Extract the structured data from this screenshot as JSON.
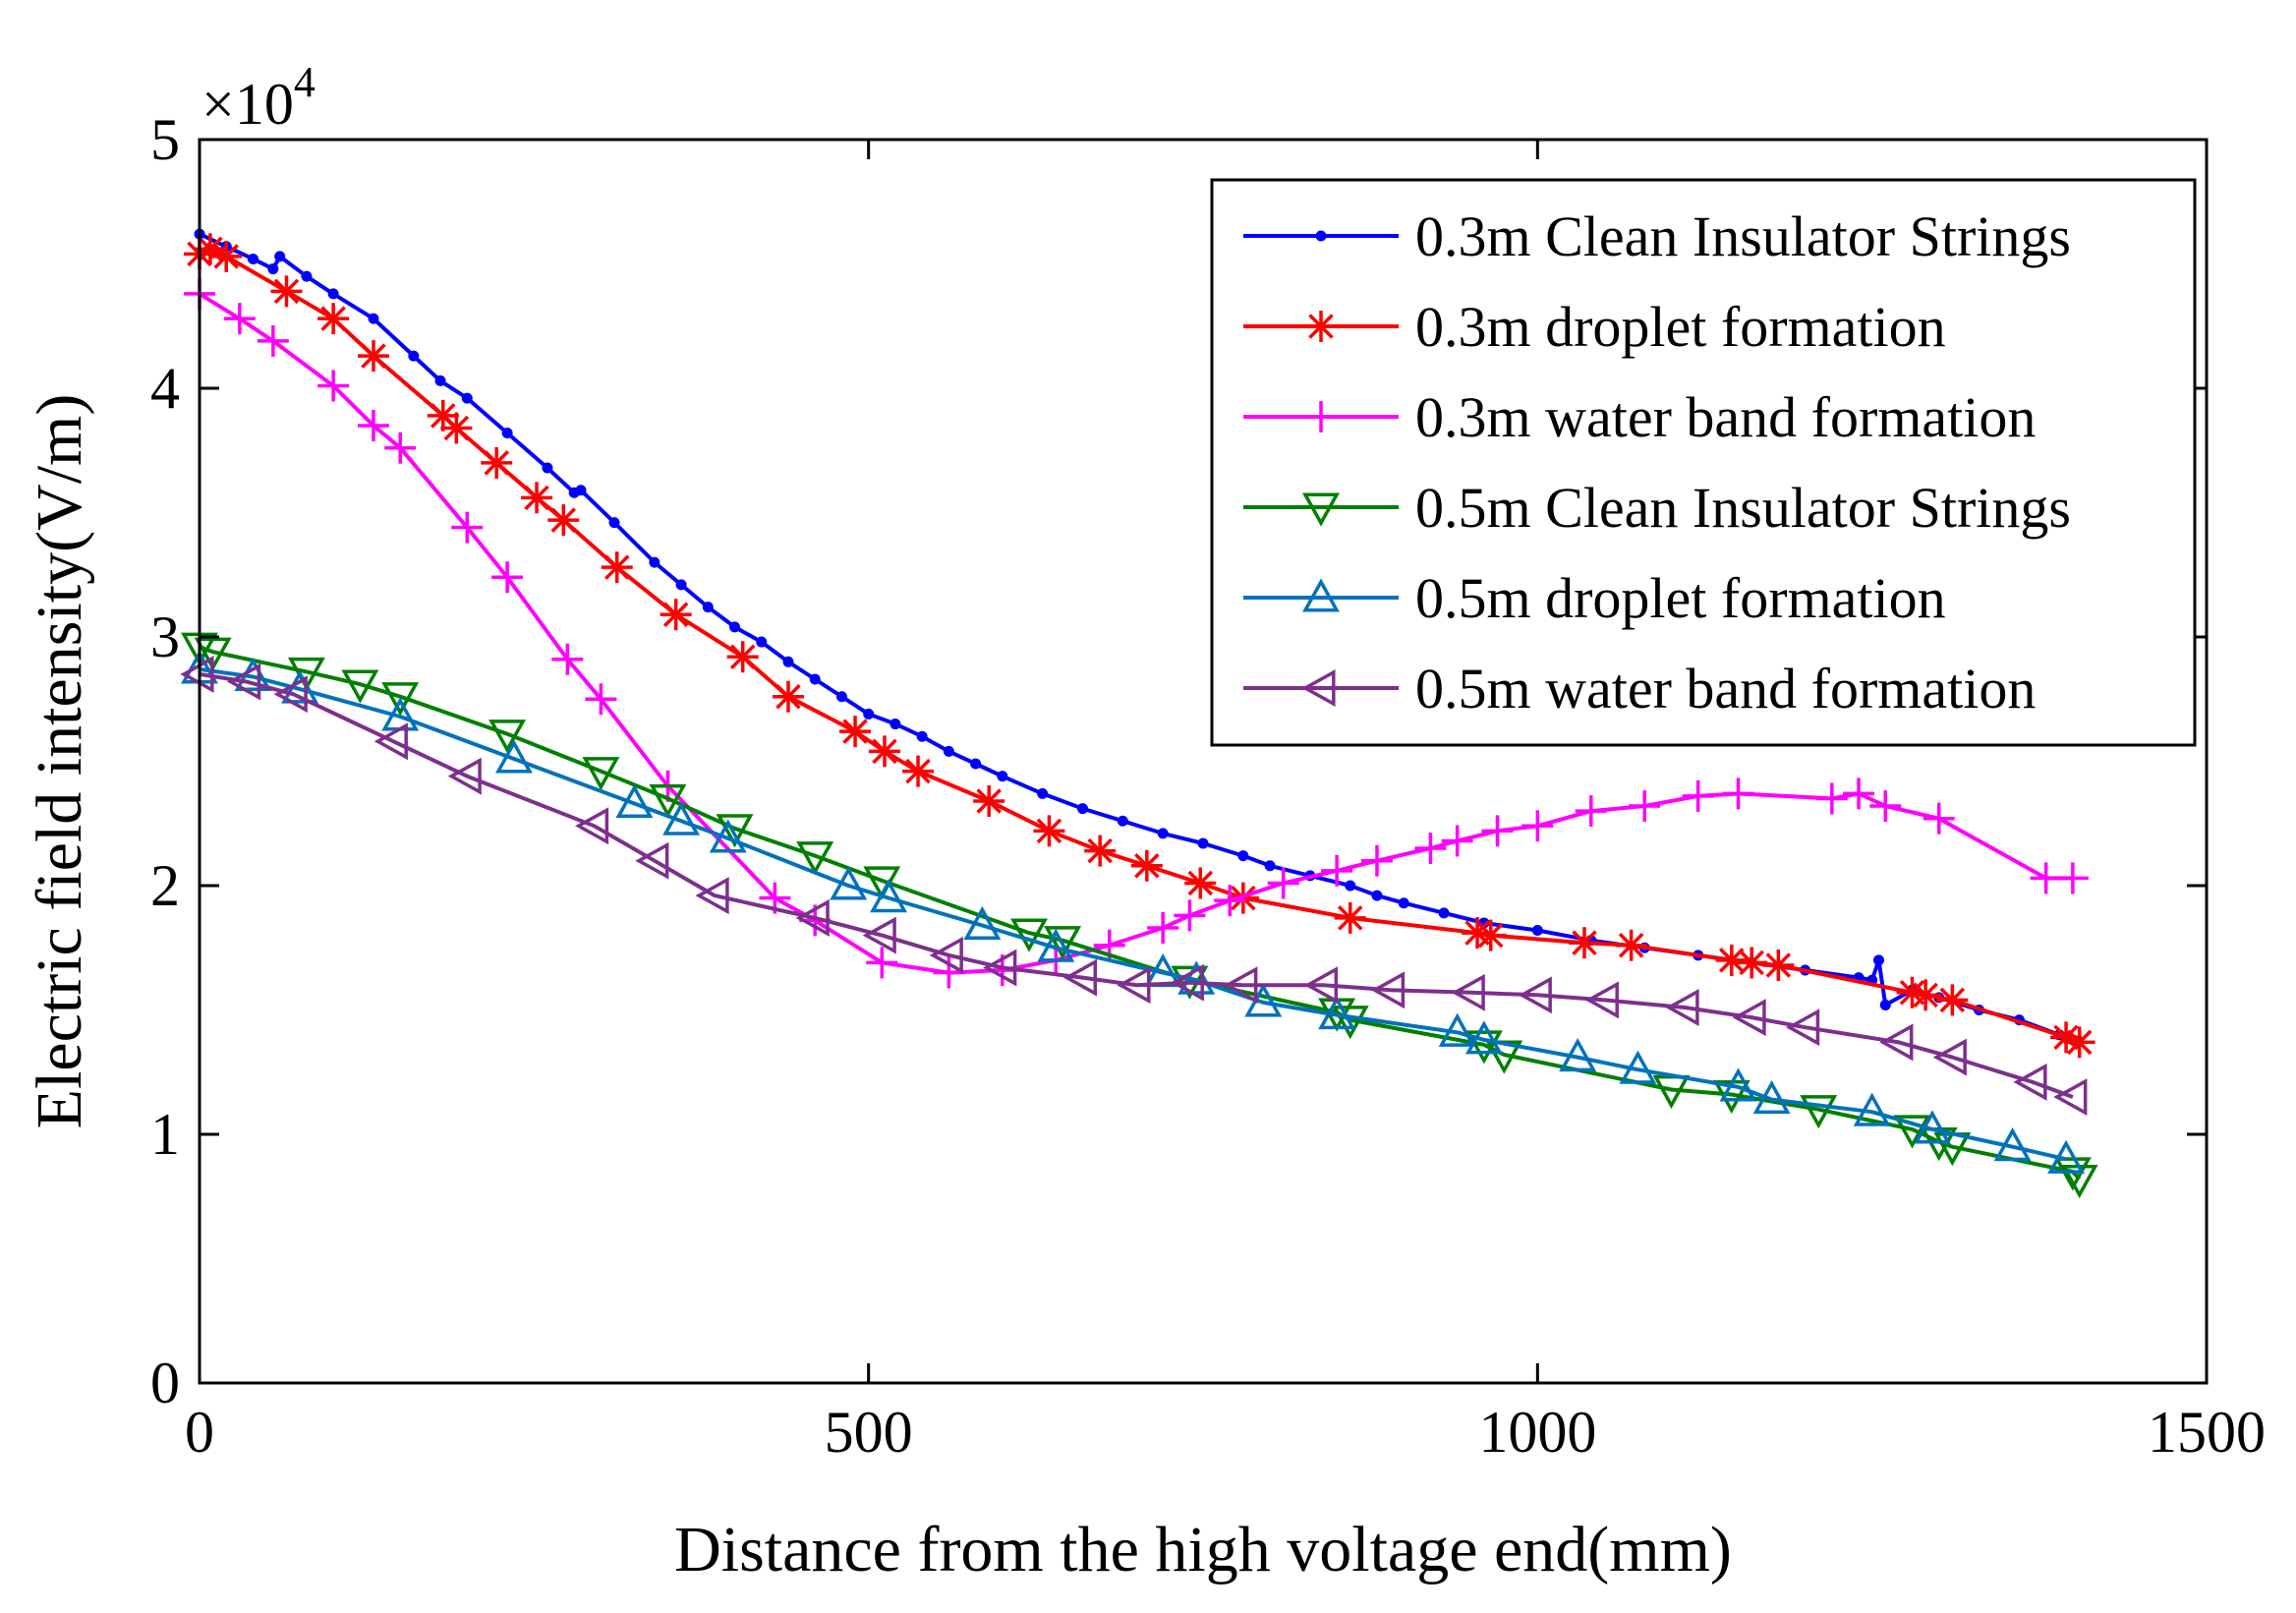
{
  "chart_data": {
    "type": "line",
    "title": "",
    "xlabel": "Distance from the high voltage end(mm)",
    "ylabel": "Electric field intensity(V/m)",
    "y_exponent_label": "×10",
    "y_exponent_power": "4",
    "xlim": [
      0,
      1500
    ],
    "ylim": [
      0,
      5
    ],
    "y_scale": 10000,
    "xticks": [
      0,
      500,
      1000,
      1500
    ],
    "yticks": [
      0,
      1,
      2,
      3,
      4,
      5
    ],
    "xtick_labels": [
      "0",
      "500",
      "1000",
      "1500"
    ],
    "ytick_labels": [
      "0",
      "1",
      "2",
      "3",
      "4",
      "5"
    ],
    "grid": false,
    "legend_position": "top-right",
    "series": [
      {
        "name": "0.3m Clean Insulator Strings",
        "color": "#0000ff",
        "marker": "dot",
        "x": [
          0,
          20,
          40,
          55,
          60,
          80,
          100,
          130,
          160,
          180,
          200,
          230,
          260,
          280,
          285,
          310,
          340,
          360,
          380,
          400,
          420,
          440,
          460,
          480,
          500,
          520,
          540,
          560,
          580,
          600,
          630,
          660,
          690,
          720,
          750,
          780,
          800,
          830,
          860,
          880,
          900,
          930,
          960,
          1000,
          1040,
          1080,
          1120,
          1160,
          1200,
          1240,
          1250,
          1255,
          1260,
          1280,
          1300,
          1330,
          1360,
          1390,
          1400
        ],
        "y": [
          4.62,
          4.57,
          4.52,
          4.48,
          4.53,
          4.45,
          4.38,
          4.28,
          4.13,
          4.03,
          3.96,
          3.82,
          3.68,
          3.58,
          3.59,
          3.46,
          3.3,
          3.21,
          3.12,
          3.04,
          2.98,
          2.9,
          2.83,
          2.76,
          2.69,
          2.65,
          2.6,
          2.54,
          2.49,
          2.44,
          2.37,
          2.31,
          2.26,
          2.21,
          2.17,
          2.12,
          2.08,
          2.04,
          2.0,
          1.96,
          1.93,
          1.89,
          1.85,
          1.82,
          1.78,
          1.75,
          1.72,
          1.69,
          1.66,
          1.63,
          1.62,
          1.7,
          1.52,
          1.58,
          1.55,
          1.5,
          1.46,
          1.4,
          1.38
        ]
      },
      {
        "name": "0.3m droplet formation",
        "color": "#ff0000",
        "marker": "star",
        "x": [
          0,
          8,
          20,
          65,
          100,
          130,
          182,
          192,
          222,
          252,
          272,
          312,
          356,
          406,
          440,
          490,
          512,
          537,
          590,
          635,
          673,
          708,
          748,
          780,
          860,
          955,
          965,
          1035,
          1070,
          1145,
          1160,
          1180,
          1280,
          1290,
          1310,
          1395,
          1405
        ],
        "y": [
          4.54,
          4.56,
          4.53,
          4.39,
          4.28,
          4.13,
          3.89,
          3.84,
          3.7,
          3.56,
          3.47,
          3.28,
          3.09,
          2.92,
          2.76,
          2.62,
          2.54,
          2.46,
          2.34,
          2.22,
          2.14,
          2.08,
          2.01,
          1.95,
          1.87,
          1.81,
          1.8,
          1.77,
          1.76,
          1.7,
          1.69,
          1.68,
          1.57,
          1.56,
          1.54,
          1.39,
          1.37
        ]
      },
      {
        "name": "0.3m water band formation",
        "color": "#ff00ff",
        "marker": "plus",
        "x": [
          0,
          30,
          55,
          100,
          130,
          150,
          200,
          230,
          275,
          300,
          350,
          430,
          460,
          510,
          560,
          600,
          640,
          680,
          720,
          740,
          770,
          810,
          850,
          880,
          920,
          940,
          970,
          1000,
          1040,
          1080,
          1120,
          1150,
          1220,
          1240,
          1260,
          1300,
          1380,
          1400
        ],
        "y": [
          4.38,
          4.28,
          4.19,
          4.01,
          3.85,
          3.76,
          3.44,
          3.24,
          2.91,
          2.75,
          2.4,
          1.95,
          1.86,
          1.69,
          1.65,
          1.66,
          1.7,
          1.76,
          1.83,
          1.88,
          1.94,
          2.01,
          2.06,
          2.1,
          2.15,
          2.18,
          2.22,
          2.24,
          2.3,
          2.32,
          2.36,
          2.37,
          2.35,
          2.37,
          2.32,
          2.27,
          2.03,
          2.03
        ]
      },
      {
        "name": "0.5m Clean Insulator Strings",
        "color": "#008000",
        "marker": "triangle-down",
        "x": [
          0,
          10,
          80,
          120,
          150,
          230,
          300,
          350,
          400,
          460,
          510,
          620,
          645,
          740,
          850,
          860,
          960,
          975,
          1100,
          1145,
          1210,
          1280,
          1300,
          1310,
          1400,
          1405
        ],
        "y": [
          2.96,
          2.94,
          2.86,
          2.81,
          2.76,
          2.61,
          2.46,
          2.35,
          2.23,
          2.12,
          2.02,
          1.81,
          1.78,
          1.62,
          1.49,
          1.46,
          1.36,
          1.32,
          1.18,
          1.16,
          1.1,
          1.02,
          0.97,
          0.95,
          0.85,
          0.82
        ]
      },
      {
        "name": "0.5m droplet formation",
        "color": "#0072bd",
        "marker": "triangle-up",
        "x": [
          0,
          40,
          75,
          150,
          235,
          325,
          360,
          395,
          485,
          515,
          585,
          640,
          720,
          745,
          795,
          850,
          940,
          960,
          1030,
          1075,
          1150,
          1175,
          1250,
          1295,
          1355,
          1395
        ],
        "y": [
          2.87,
          2.84,
          2.79,
          2.68,
          2.51,
          2.33,
          2.26,
          2.19,
          2.0,
          1.95,
          1.84,
          1.75,
          1.65,
          1.62,
          1.53,
          1.48,
          1.41,
          1.38,
          1.31,
          1.26,
          1.19,
          1.14,
          1.09,
          1.02,
          0.95,
          0.9
        ]
      },
      {
        "name": "0.5m water band formation",
        "color": "#7e2f8e",
        "marker": "triangle-left",
        "x": [
          0,
          35,
          70,
          145,
          200,
          295,
          340,
          385,
          460,
          510,
          560,
          600,
          660,
          700,
          740,
          780,
          840,
          890,
          950,
          1000,
          1050,
          1110,
          1160,
          1200,
          1270,
          1310,
          1370,
          1400
        ],
        "y": [
          2.85,
          2.82,
          2.77,
          2.58,
          2.44,
          2.24,
          2.1,
          1.96,
          1.87,
          1.8,
          1.72,
          1.67,
          1.63,
          1.6,
          1.61,
          1.6,
          1.6,
          1.58,
          1.57,
          1.56,
          1.54,
          1.51,
          1.47,
          1.43,
          1.37,
          1.31,
          1.21,
          1.15
        ]
      }
    ]
  }
}
